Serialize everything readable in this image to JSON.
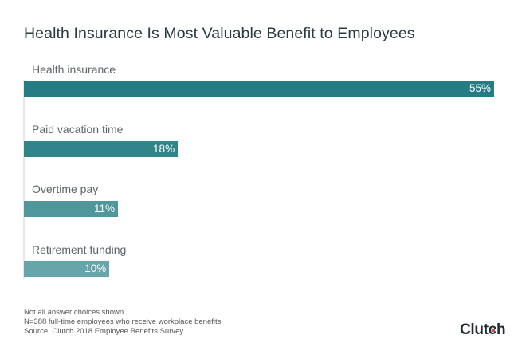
{
  "chart_data": {
    "type": "bar",
    "orientation": "horizontal",
    "title": "Health Insurance Is Most Valuable Benefit to Employees",
    "categories": [
      "Health insurance",
      "Paid vacation time",
      "Overtime pay",
      "Retirement funding"
    ],
    "values": [
      55,
      18,
      11,
      10
    ],
    "value_labels": [
      "55%",
      "18%",
      "11%",
      "10%"
    ],
    "colors": [
      "#267c84",
      "#2f858a",
      "#4f979b",
      "#66a5aa"
    ],
    "xlim": [
      0,
      55
    ],
    "grid": false
  },
  "notes": [
    "Not all answer choices shown",
    "N=388 full-time employees who receive workplace benefits",
    "Source: Clutch 2018 Employee Benefits Survey"
  ],
  "logo": "Clutch"
}
